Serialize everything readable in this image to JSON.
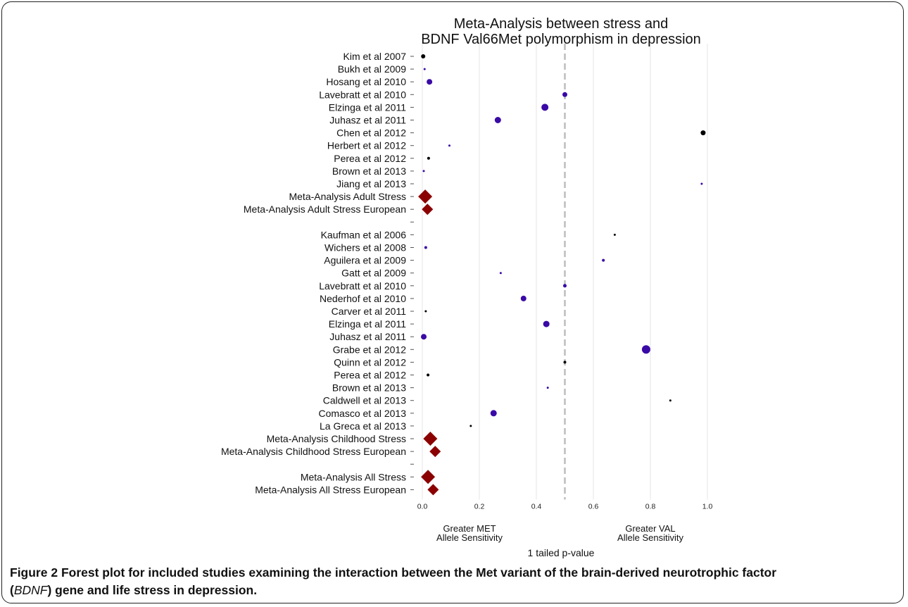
{
  "chart_data": {
    "type": "scatter",
    "title": [
      "Meta-Analysis between stress and",
      "BDNF Val66Met polymorphism in depression"
    ],
    "xlabel": "1 tailed p-value",
    "xlim": [
      0.0,
      1.0
    ],
    "xticks": [
      "0.0",
      "0.2",
      "0.4",
      "0.6",
      "0.8",
      "1.0"
    ],
    "reference_line": 0.5,
    "grid": true,
    "annotations": [
      {
        "lines": [
          "Greater MET",
          "Allele Sensitivity"
        ],
        "side": "left"
      },
      {
        "lines": [
          "Greater VAL",
          "Allele Sensitivity"
        ],
        "side": "right"
      }
    ],
    "colors": {
      "black": "#000000",
      "purple": "#3a0aa6",
      "red": "#8b0000"
    },
    "rows": [
      {
        "label": "Kim et al 2007",
        "p": 0.003,
        "size": 3,
        "color": "black",
        "shape": "circle"
      },
      {
        "label": "Bukh et al 2009",
        "p": 0.008,
        "size": 1.5,
        "color": "purple",
        "shape": "circle"
      },
      {
        "label": "Hosang et al 2010",
        "p": 0.025,
        "size": 4,
        "color": "purple",
        "shape": "circle"
      },
      {
        "label": "Lavebratt et al 2010",
        "p": 0.5,
        "size": 3.5,
        "color": "purple",
        "shape": "circle"
      },
      {
        "label": "Elzinga et al 2011",
        "p": 0.43,
        "size": 5,
        "color": "purple",
        "shape": "circle"
      },
      {
        "label": "Juhasz et al 2011",
        "p": 0.265,
        "size": 4.5,
        "color": "purple",
        "shape": "circle"
      },
      {
        "label": "Chen et al 2012",
        "p": 0.985,
        "size": 3.5,
        "color": "black",
        "shape": "circle"
      },
      {
        "label": "Herbert et al 2012",
        "p": 0.095,
        "size": 1.5,
        "color": "purple",
        "shape": "circle"
      },
      {
        "label": "Perea et al 2012",
        "p": 0.022,
        "size": 2,
        "color": "black",
        "shape": "circle"
      },
      {
        "label": "Brown et al 2013",
        "p": 0.005,
        "size": 1.5,
        "color": "purple",
        "shape": "circle"
      },
      {
        "label": "Jiang et al 2013",
        "p": 0.98,
        "size": 1.5,
        "color": "purple",
        "shape": "circle"
      },
      {
        "label": "Meta-Analysis Adult Stress",
        "p": 0.01,
        "size": 10,
        "color": "red",
        "shape": "diamond"
      },
      {
        "label": "Meta-Analysis Adult Stress European",
        "p": 0.018,
        "size": 8,
        "color": "red",
        "shape": "diamond"
      },
      {
        "label": "",
        "p": null,
        "size": 0,
        "color": "",
        "shape": "none"
      },
      {
        "label": "Kaufman et al 2006",
        "p": 0.675,
        "size": 1.5,
        "color": "black",
        "shape": "circle"
      },
      {
        "label": "Wichers et al 2008",
        "p": 0.012,
        "size": 2,
        "color": "purple",
        "shape": "circle"
      },
      {
        "label": "Aguilera et al 2009",
        "p": 0.635,
        "size": 2,
        "color": "purple",
        "shape": "circle"
      },
      {
        "label": "Gatt et al 2009",
        "p": 0.275,
        "size": 1.5,
        "color": "purple",
        "shape": "circle"
      },
      {
        "label": "Lavebratt et al 2010",
        "p": 0.5,
        "size": 2.5,
        "color": "purple",
        "shape": "circle"
      },
      {
        "label": "Nederhof et al 2010",
        "p": 0.355,
        "size": 4,
        "color": "purple",
        "shape": "circle"
      },
      {
        "label": "Carver et al 2011",
        "p": 0.012,
        "size": 1.5,
        "color": "black",
        "shape": "circle"
      },
      {
        "label": "Elzinga et al 2011",
        "p": 0.435,
        "size": 4.5,
        "color": "purple",
        "shape": "circle"
      },
      {
        "label": "Juhasz et al 2011",
        "p": 0.005,
        "size": 4,
        "color": "purple",
        "shape": "circle"
      },
      {
        "label": "Grabe et al 2012",
        "p": 0.785,
        "size": 6,
        "color": "purple",
        "shape": "circle"
      },
      {
        "label": "Quinn et al 2012",
        "p": 0.5,
        "size": 2,
        "color": "black",
        "shape": "circle"
      },
      {
        "label": "Perea et al 2012",
        "p": 0.02,
        "size": 2,
        "color": "black",
        "shape": "circle"
      },
      {
        "label": "Brown et al 2013",
        "p": 0.44,
        "size": 1.5,
        "color": "purple",
        "shape": "circle"
      },
      {
        "label": "Caldwell et al 2013",
        "p": 0.87,
        "size": 1.5,
        "color": "black",
        "shape": "circle"
      },
      {
        "label": "Comasco et al 2013",
        "p": 0.25,
        "size": 4.5,
        "color": "purple",
        "shape": "circle"
      },
      {
        "label": "La Greca et al 2013",
        "p": 0.17,
        "size": 1.5,
        "color": "black",
        "shape": "circle"
      },
      {
        "label": "Meta-Analysis Childhood Stress",
        "p": 0.028,
        "size": 10,
        "color": "red",
        "shape": "diamond"
      },
      {
        "label": "Meta-Analysis Childhood Stress European",
        "p": 0.045,
        "size": 8,
        "color": "red",
        "shape": "diamond"
      },
      {
        "label": "",
        "p": null,
        "size": 0,
        "color": "",
        "shape": "none"
      },
      {
        "label": "Meta-Analysis All Stress",
        "p": 0.02,
        "size": 10,
        "color": "red",
        "shape": "diamond"
      },
      {
        "label": "Meta-Analysis All Stress European",
        "p": 0.038,
        "size": 8,
        "color": "red",
        "shape": "diamond"
      }
    ]
  },
  "caption": {
    "figure_label": "Figure 2",
    "text_bold_1": " Forest plot for included studies examining the interaction between the Met variant of the brain-derived neurotrophic factor",
    "open_paren": "(",
    "gene_italic": "BDNF",
    "text_bold_2": ") gene and life stress in depression."
  }
}
